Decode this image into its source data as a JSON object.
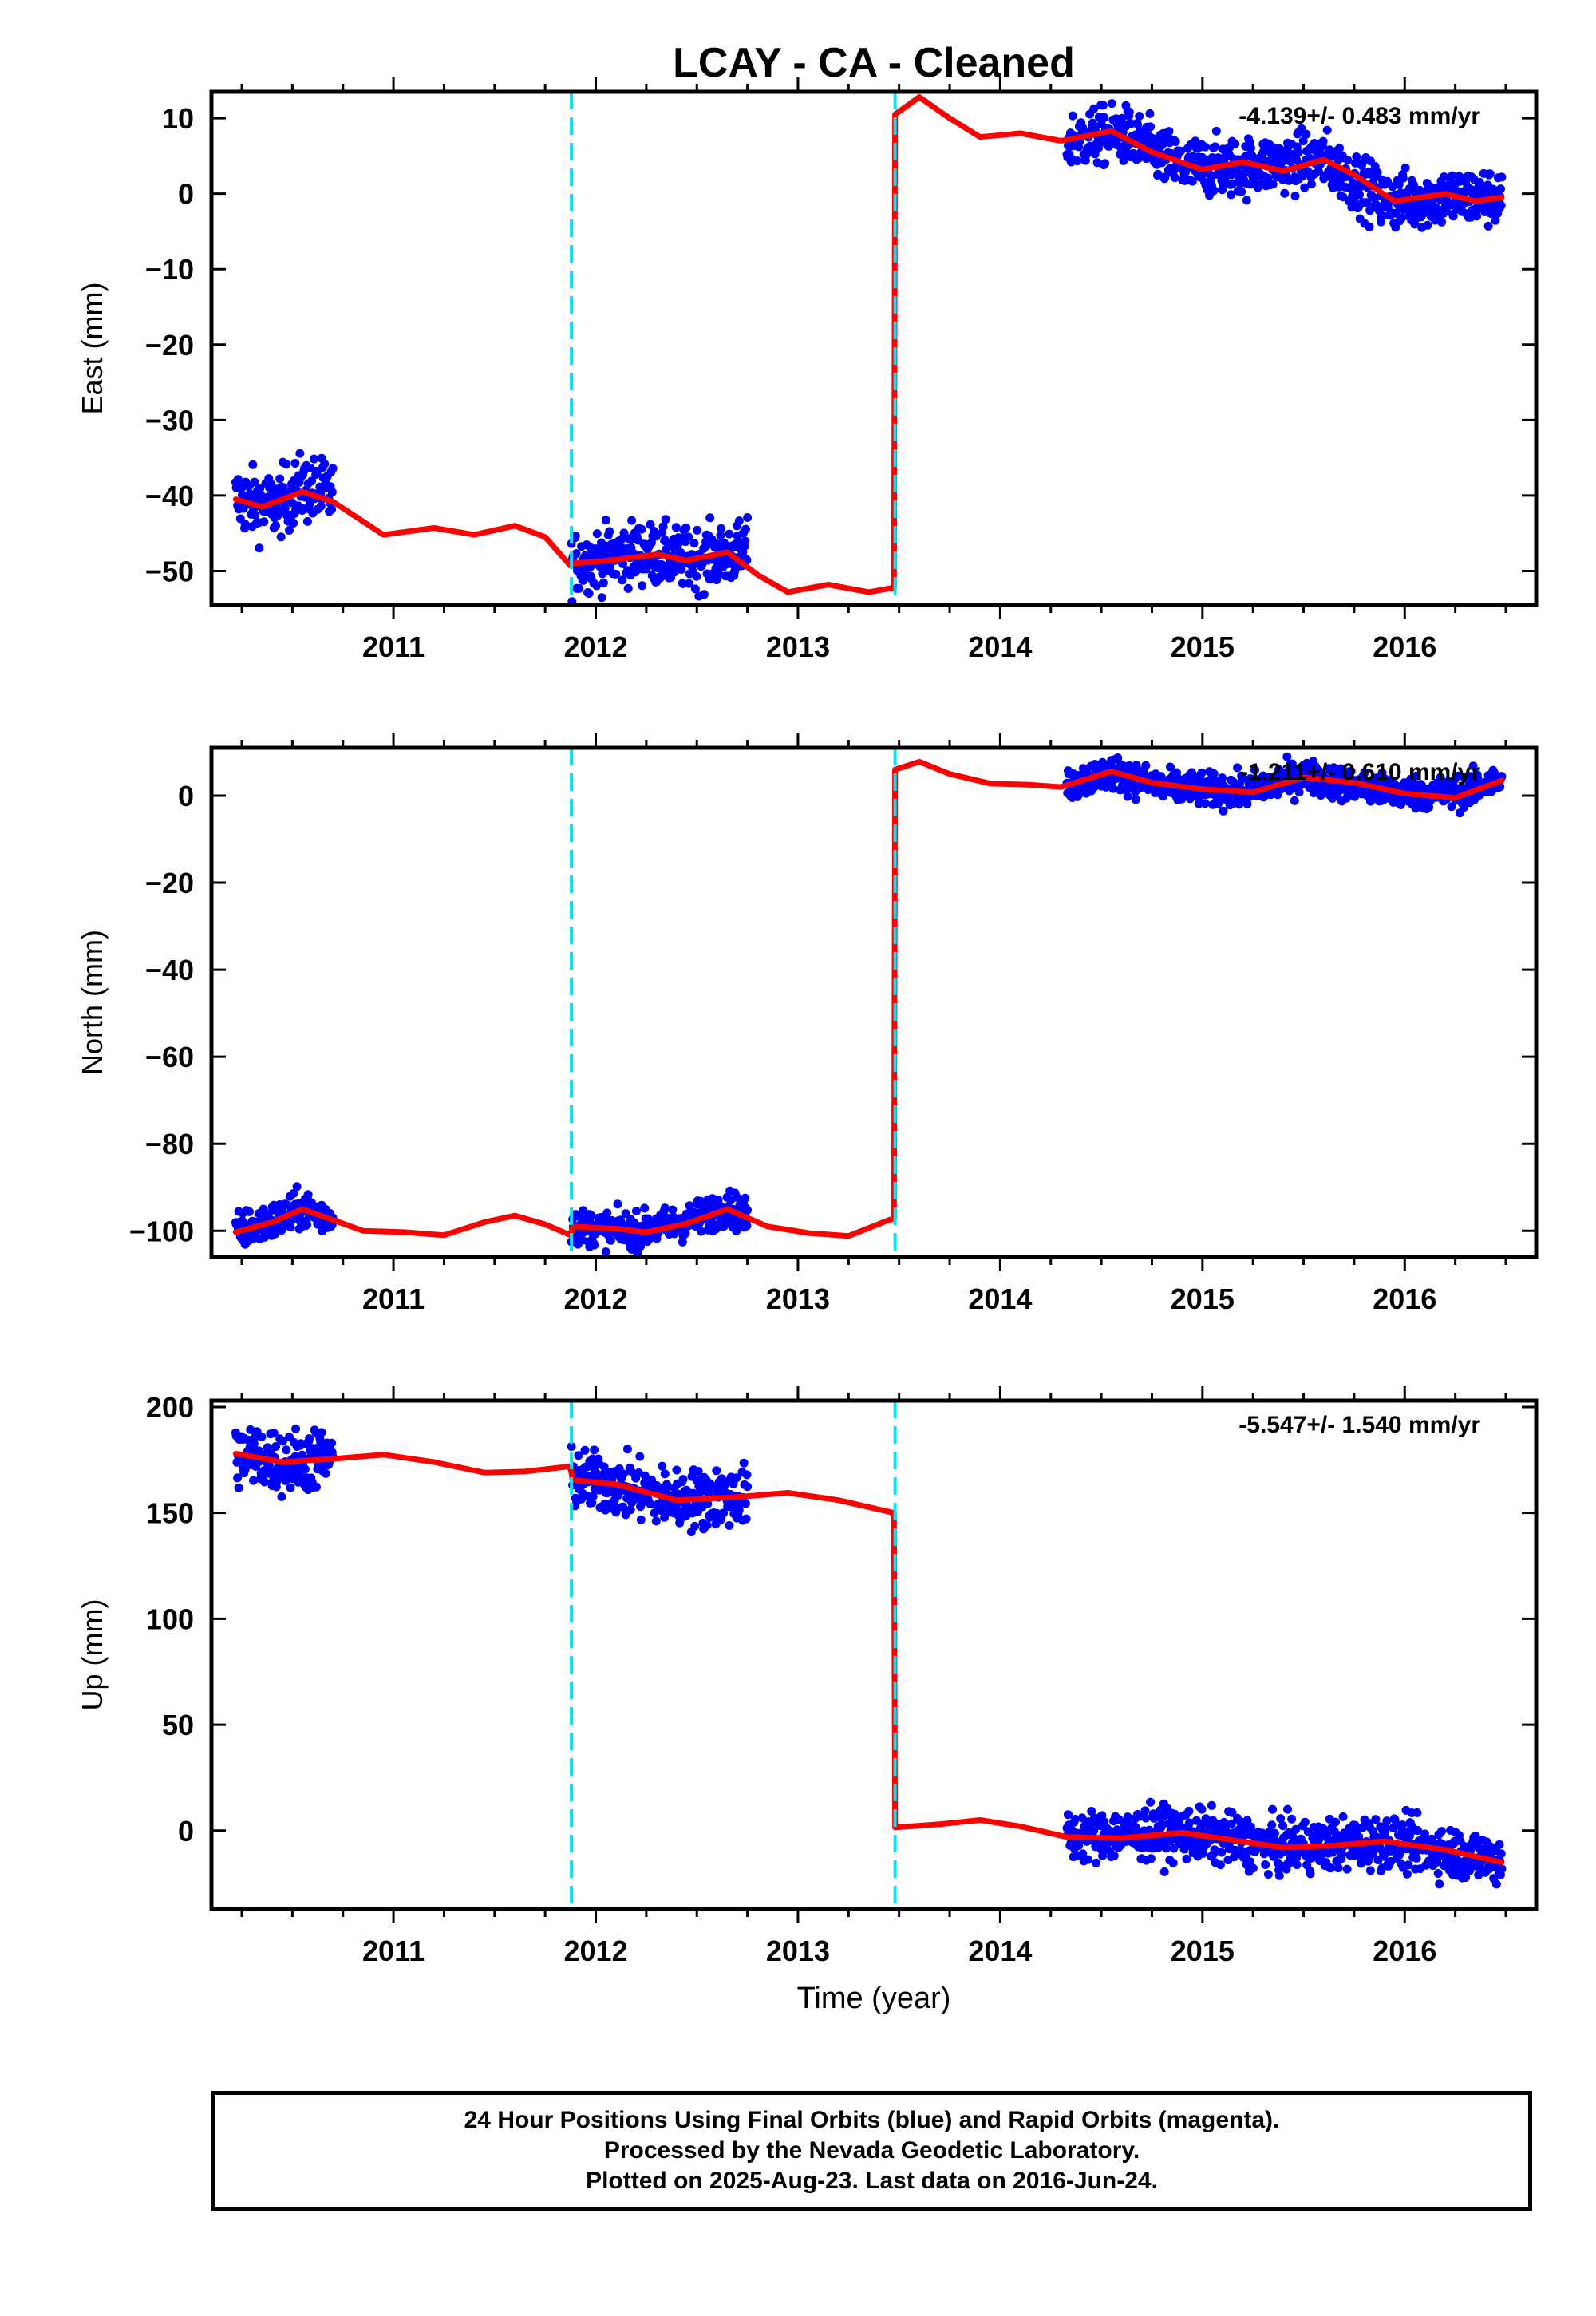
{
  "title": "LCAY  - CA - Cleaned",
  "colors": {
    "data_points": "#0000ff",
    "model_fit": "#ff0000",
    "event_lines": "#00e5ee",
    "frame": "#000000"
  },
  "x_axis": {
    "label": "Time (year)",
    "range": [
      2010.1,
      2016.65
    ],
    "ticks": [
      "2011",
      "2012",
      "2013",
      "2014",
      "2015",
      "2016"
    ]
  },
  "chart_data": [
    {
      "type": "scatter",
      "panel": "east",
      "ylabel": "East (mm)",
      "annotation": "-4.139+/- 0.483 mm/yr",
      "ylim": [
        -54.5,
        13.5
      ],
      "y_ticks": [
        10,
        0,
        -10,
        -20,
        -30,
        -40,
        -50
      ],
      "event_lines_x": [
        2011.88,
        2013.48
      ],
      "grid": false,
      "series": [
        {
          "kind": "points",
          "color": "final orbits (blue)",
          "segments": [
            {
              "start": 2010.22,
              "end": 2010.7,
              "level": [
                [
                  2010.22,
                  -40.5
                ],
                [
                  2010.4,
                  -41.5
                ],
                [
                  2010.55,
                  -39.0
                ],
                [
                  2010.7,
                  -40.0
                ]
              ],
              "spread": 2.2
            },
            {
              "start": 2011.88,
              "end": 2012.75,
              "level": [
                [
                  2011.88,
                  -49.0
                ],
                [
                  2012.2,
                  -47.5
                ],
                [
                  2012.45,
                  -48.5
                ],
                [
                  2012.75,
                  -47.5
                ]
              ],
              "spread": 2.0
            },
            {
              "start": 2014.33,
              "end": 2016.48,
              "level": [
                [
                  2014.33,
                  7.0
                ],
                [
                  2014.6,
                  8.0
                ],
                [
                  2014.9,
                  3.5
                ],
                [
                  2015.2,
                  3.5
                ],
                [
                  2015.6,
                  4.5
                ],
                [
                  2015.9,
                  -1.0
                ],
                [
                  2016.2,
                  -0.5
                ],
                [
                  2016.48,
                  -0.5
                ]
              ],
              "spread": 1.9
            }
          ]
        },
        {
          "kind": "model",
          "points": [
            [
              2010.22,
              -40.5
            ],
            [
              2010.35,
              -41.5
            ],
            [
              2010.55,
              -39.5
            ],
            [
              2010.7,
              -40.8
            ],
            [
              2010.95,
              -45.2
            ],
            [
              2011.2,
              -44.3
            ],
            [
              2011.4,
              -45.2
            ],
            [
              2011.6,
              -44.0
            ],
            [
              2011.75,
              -45.5
            ],
            [
              2011.875,
              -49.3
            ],
            [
              2011.885,
              -49.0
            ],
            [
              2012.1,
              -48.5
            ],
            [
              2012.3,
              -47.8
            ],
            [
              2012.45,
              -48.6
            ],
            [
              2012.65,
              -47.5
            ],
            [
              2012.8,
              -50.5
            ],
            [
              2012.95,
              -52.8
            ],
            [
              2013.15,
              -51.8
            ],
            [
              2013.35,
              -52.8
            ],
            [
              2013.475,
              -52.2
            ],
            [
              2013.48,
              10.5
            ],
            [
              2013.6,
              12.8
            ],
            [
              2013.75,
              10.0
            ],
            [
              2013.9,
              7.5
            ],
            [
              2014.1,
              8.0
            ],
            [
              2014.3,
              7.0
            ],
            [
              2014.55,
              8.3
            ],
            [
              2014.75,
              5.5
            ],
            [
              2015.0,
              3.2
            ],
            [
              2015.2,
              4.2
            ],
            [
              2015.4,
              3.0
            ],
            [
              2015.6,
              4.5
            ],
            [
              2015.75,
              2.5
            ],
            [
              2015.95,
              -1.0
            ],
            [
              2016.2,
              0.0
            ],
            [
              2016.35,
              -1.0
            ],
            [
              2016.48,
              -0.5
            ]
          ]
        }
      ]
    },
    {
      "type": "scatter",
      "panel": "north",
      "ylabel": "North (mm)",
      "annotation": "-1.211+/- 0.610 mm/yr",
      "ylim": [
        -106,
        11
      ],
      "y_ticks": [
        0,
        -20,
        -40,
        -60,
        -80,
        -100
      ],
      "event_lines_x": [
        2011.88,
        2013.48
      ],
      "grid": false,
      "series": [
        {
          "kind": "points",
          "color": "final orbits (blue)",
          "segments": [
            {
              "start": 2010.22,
              "end": 2010.7,
              "level": [
                [
                  2010.22,
                  -100.0
                ],
                [
                  2010.4,
                  -98.0
                ],
                [
                  2010.55,
                  -95.0
                ],
                [
                  2010.7,
                  -97.0
                ]
              ],
              "spread": 2.2
            },
            {
              "start": 2011.88,
              "end": 2012.75,
              "level": [
                [
                  2011.88,
                  -99.0
                ],
                [
                  2012.2,
                  -100.0
                ],
                [
                  2012.45,
                  -98.0
                ],
                [
                  2012.65,
                  -94.5
                ],
                [
                  2012.75,
                  -97.0
                ]
              ],
              "spread": 2.0
            },
            {
              "start": 2014.33,
              "end": 2016.48,
              "level": [
                [
                  2014.33,
                  2.5
                ],
                [
                  2014.55,
                  5.5
                ],
                [
                  2014.8,
                  2.0
                ],
                [
                  2015.2,
                  1.0
                ],
                [
                  2015.5,
                  4.5
                ],
                [
                  2015.9,
                  1.0
                ],
                [
                  2016.25,
                  0.5
                ],
                [
                  2016.48,
                  3.5
                ]
              ],
              "spread": 1.9
            }
          ]
        },
        {
          "kind": "model",
          "points": [
            [
              2010.22,
              -100.3
            ],
            [
              2010.4,
              -98.0
            ],
            [
              2010.55,
              -95.0
            ],
            [
              2010.7,
              -97.5
            ],
            [
              2010.85,
              -100.0
            ],
            [
              2011.05,
              -100.3
            ],
            [
              2011.25,
              -101.0
            ],
            [
              2011.45,
              -98.0
            ],
            [
              2011.6,
              -96.5
            ],
            [
              2011.75,
              -98.5
            ],
            [
              2011.875,
              -101.0
            ],
            [
              2011.885,
              -99.0
            ],
            [
              2012.1,
              -99.5
            ],
            [
              2012.25,
              -100.3
            ],
            [
              2012.45,
              -98.3
            ],
            [
              2012.65,
              -95.0
            ],
            [
              2012.85,
              -99.0
            ],
            [
              2013.05,
              -100.5
            ],
            [
              2013.25,
              -101.2
            ],
            [
              2013.45,
              -97.5
            ],
            [
              2013.475,
              -97.2
            ],
            [
              2013.48,
              6.0
            ],
            [
              2013.6,
              7.8
            ],
            [
              2013.75,
              5.0
            ],
            [
              2013.95,
              2.8
            ],
            [
              2014.15,
              2.5
            ],
            [
              2014.3,
              2.0
            ],
            [
              2014.55,
              5.6
            ],
            [
              2014.75,
              3.0
            ],
            [
              2015.0,
              1.5
            ],
            [
              2015.25,
              0.8
            ],
            [
              2015.5,
              4.2
            ],
            [
              2015.75,
              3.0
            ],
            [
              2016.0,
              0.5
            ],
            [
              2016.25,
              -0.5
            ],
            [
              2016.48,
              3.5
            ]
          ]
        }
      ]
    },
    {
      "type": "scatter",
      "panel": "up",
      "ylabel": "Up (mm)",
      "annotation": "-5.547+/- 1.540 mm/yr",
      "ylim": [
        -37,
        203
      ],
      "y_ticks": [
        200,
        150,
        100,
        50,
        0
      ],
      "event_lines_x": [
        2011.88,
        2013.48
      ],
      "grid": false,
      "series": [
        {
          "kind": "points",
          "color": "final orbits (blue)",
          "segments": [
            {
              "start": 2010.22,
              "end": 2010.7,
              "level": [
                [
                  2010.22,
                  178.0
                ],
                [
                  2010.45,
                  174.0
                ],
                [
                  2010.7,
                  176.0
                ]
              ],
              "spread": 7.5
            },
            {
              "start": 2011.88,
              "end": 2012.75,
              "level": [
                [
                  2011.88,
                  166.0
                ],
                [
                  2012.1,
                  163.0
                ],
                [
                  2012.4,
                  156.0
                ],
                [
                  2012.75,
                  158.0
                ]
              ],
              "spread": 7.0
            },
            {
              "start": 2014.33,
              "end": 2016.48,
              "level": [
                [
                  2014.33,
                  -3.0
                ],
                [
                  2014.9,
                  -1.0
                ],
                [
                  2015.4,
                  -8.0
                ],
                [
                  2015.9,
                  -5.0
                ],
                [
                  2016.48,
                  -14.0
                ]
              ],
              "spread": 6.0
            }
          ]
        },
        {
          "kind": "model",
          "points": [
            [
              2010.22,
              178.0
            ],
            [
              2010.45,
              174.0
            ],
            [
              2010.7,
              175.5
            ],
            [
              2010.95,
              177.5
            ],
            [
              2011.2,
              174.0
            ],
            [
              2011.45,
              169.0
            ],
            [
              2011.65,
              169.5
            ],
            [
              2011.875,
              172.0
            ],
            [
              2011.885,
              165.5
            ],
            [
              2012.1,
              163.5
            ],
            [
              2012.4,
              156.0
            ],
            [
              2012.7,
              157.5
            ],
            [
              2012.95,
              159.5
            ],
            [
              2013.2,
              156.0
            ],
            [
              2013.475,
              150.0
            ],
            [
              2013.48,
              1.5
            ],
            [
              2013.7,
              3.0
            ],
            [
              2013.9,
              5.0
            ],
            [
              2014.1,
              2.0
            ],
            [
              2014.33,
              -3.0
            ],
            [
              2014.6,
              -3.5
            ],
            [
              2014.9,
              -1.0
            ],
            [
              2015.15,
              -4.5
            ],
            [
              2015.4,
              -8.0
            ],
            [
              2015.65,
              -7.0
            ],
            [
              2015.9,
              -5.0
            ],
            [
              2016.2,
              -9.0
            ],
            [
              2016.48,
              -15.0
            ]
          ]
        }
      ]
    }
  ],
  "footer": {
    "line1": "24 Hour Positions Using Final Orbits (blue) and Rapid Orbits (magenta).",
    "line2": "Processed by the Nevada Geodetic Laboratory.",
    "line3": "Plotted on 2025-Aug-23. Last data on 2016-Jun-24."
  }
}
